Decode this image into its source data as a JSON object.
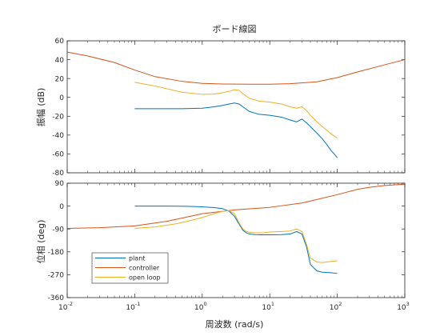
{
  "chart_data": [
    {
      "type": "line",
      "panel": "magnitude",
      "title": "ボード線図",
      "xlabel": "",
      "ylabel": "振幅 (dB)",
      "x_scale": "log",
      "xlim": [
        0.01,
        1000
      ],
      "ylim": [
        -80,
        60
      ],
      "yticks": [
        60,
        40,
        20,
        0,
        -20,
        -40,
        -60,
        -80
      ],
      "grid": false,
      "series": [
        {
          "name": "plant",
          "color": "#0072BD",
          "x": [
            0.1,
            0.2,
            0.5,
            1,
            1.5,
            2,
            2.5,
            3,
            3.5,
            4,
            5,
            7,
            10,
            15,
            20,
            25,
            30,
            35,
            40,
            50,
            60,
            70,
            80,
            90,
            100
          ],
          "y": [
            -12,
            -12,
            -12,
            -11.5,
            -10,
            -8.5,
            -7,
            -6,
            -7,
            -10,
            -15,
            -18,
            -19,
            -21,
            -24,
            -26,
            -23,
            -27,
            -31,
            -38,
            -44,
            -50,
            -56,
            -60,
            -64
          ]
        },
        {
          "name": "controller",
          "color": "#D95319",
          "x": [
            0.01,
            0.02,
            0.05,
            0.1,
            0.2,
            0.5,
            1,
            2,
            5,
            10,
            20,
            50,
            100,
            200,
            500,
            1000
          ],
          "y": [
            48,
            44,
            37,
            29,
            22,
            17,
            14.8,
            14.2,
            14,
            14,
            14.5,
            16.5,
            21,
            27,
            34.5,
            40
          ]
        },
        {
          "name": "open loop",
          "color": "#EDB120",
          "x": [
            0.1,
            0.2,
            0.5,
            1,
            1.5,
            2,
            2.5,
            3,
            3.5,
            4,
            5,
            7,
            10,
            15,
            20,
            25,
            30,
            35,
            40,
            50,
            60,
            70,
            80,
            90,
            100
          ],
          "y": [
            16,
            12,
            5.5,
            3.2,
            3.5,
            5,
            6.5,
            8,
            7.5,
            4,
            -1,
            -4,
            -5,
            -7,
            -10,
            -11.5,
            -10,
            -14,
            -19,
            -26,
            -31,
            -35,
            -38.5,
            -41,
            -43
          ]
        }
      ]
    },
    {
      "type": "line",
      "panel": "phase",
      "title": "",
      "xlabel": "周波数 (rad/s)",
      "ylabel": "位相 (deg)",
      "x_scale": "log",
      "xlim": [
        0.01,
        1000
      ],
      "ylim": [
        -360,
        90
      ],
      "yticks": [
        90,
        0,
        -90,
        -180,
        -270,
        -360
      ],
      "xticks": [
        0.01,
        0.1,
        1,
        10,
        100,
        1000
      ],
      "xtick_labels": [
        {
          "base": "10",
          "exp": "-2"
        },
        {
          "base": "10",
          "exp": "-1"
        },
        {
          "base": "10",
          "exp": "0"
        },
        {
          "base": "10",
          "exp": "1"
        },
        {
          "base": "10",
          "exp": "2"
        },
        {
          "base": "10",
          "exp": "3"
        }
      ],
      "grid": false,
      "legend": {
        "placement": "bottom-left",
        "entries": [
          "plant",
          "controller",
          "open loop"
        ]
      },
      "series": [
        {
          "name": "plant",
          "color": "#0072BD",
          "x": [
            0.1,
            0.3,
            0.6,
            1,
            1.5,
            2,
            2.5,
            3,
            3.5,
            4,
            4.5,
            5,
            6,
            8,
            10,
            15,
            20,
            25,
            30,
            35,
            40,
            50,
            60,
            80,
            100
          ],
          "y": [
            0,
            0,
            -1,
            -3,
            -6,
            -10,
            -20,
            -40,
            -70,
            -95,
            -105,
            -110,
            -112,
            -113,
            -113,
            -112,
            -110,
            -100,
            -110,
            -160,
            -230,
            -255,
            -260,
            -262,
            -265
          ]
        },
        {
          "name": "controller",
          "color": "#D95319",
          "x": [
            0.01,
            0.03,
            0.1,
            0.3,
            1,
            3,
            10,
            30,
            100,
            200,
            300,
            500,
            1000
          ],
          "y": [
            -88,
            -85,
            -78,
            -60,
            -30,
            -15,
            -5,
            12,
            45,
            66,
            74,
            81,
            86
          ]
        },
        {
          "name": "open loop",
          "color": "#EDB120",
          "x": [
            0.1,
            0.2,
            0.4,
            0.6,
            1,
            1.5,
            2,
            2.5,
            3,
            3.5,
            4,
            4.5,
            5,
            6,
            8,
            10,
            15,
            20,
            25,
            30,
            35,
            40,
            50,
            60,
            80,
            100
          ],
          "y": [
            -88,
            -82,
            -70,
            -60,
            -45,
            -30,
            -20,
            -18,
            -30,
            -65,
            -90,
            -100,
            -103,
            -105,
            -105,
            -102,
            -100,
            -98,
            -90,
            -100,
            -150,
            -205,
            -220,
            -222,
            -218,
            -215
          ]
        }
      ]
    }
  ]
}
